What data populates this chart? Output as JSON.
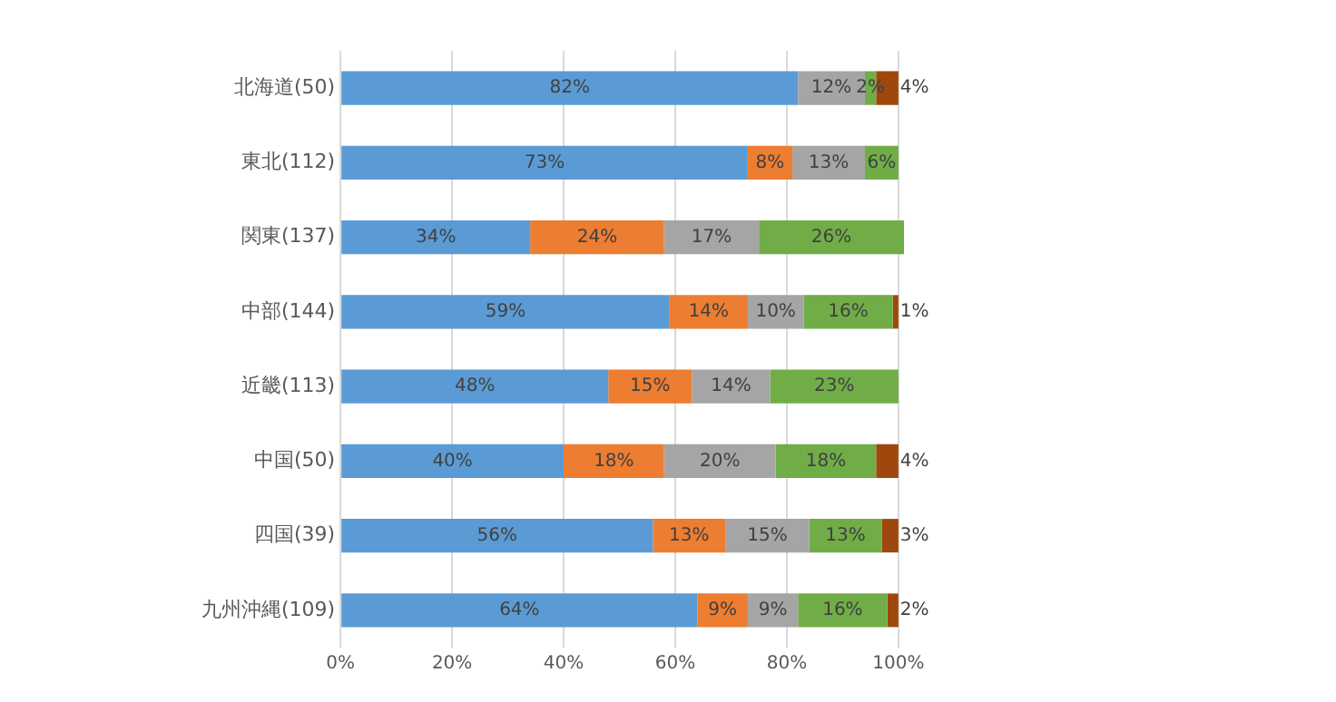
{
  "chart_data": {
    "type": "bar",
    "orientation": "horizontal",
    "stacked": true,
    "categories": [
      "北海道(50)",
      "東北(112)",
      "関東(137)",
      "中部(144)",
      "近畿(113)",
      "中国(50)",
      "四国(39)",
      "九州沖縄(109)"
    ],
    "series": [
      {
        "color": "#5b9bd5",
        "values": [
          82,
          73,
          34,
          59,
          48,
          40,
          56,
          64
        ],
        "value_labels": [
          "82%",
          "73%",
          "34%",
          "59%",
          "48%",
          "40%",
          "56%",
          "64%"
        ]
      },
      {
        "color": "#ed7d31",
        "values": [
          0,
          8,
          24,
          14,
          15,
          18,
          13,
          9
        ],
        "value_labels": [
          null,
          "8%",
          "24%",
          "14%",
          "15%",
          "18%",
          "13%",
          "9%"
        ]
      },
      {
        "color": "#a5a5a5",
        "values": [
          12,
          13,
          17,
          10,
          14,
          20,
          15,
          9
        ],
        "value_labels": [
          "12%",
          "13%",
          "17%",
          "10%",
          "14%",
          "20%",
          "15%",
          "9%"
        ]
      },
      {
        "color": "#70ad47",
        "values": [
          2,
          6,
          26,
          16,
          23,
          18,
          13,
          16
        ],
        "value_labels": [
          "2%",
          "6%",
          "26%",
          "16%",
          "23%",
          "18%",
          "13%",
          "16%"
        ]
      },
      {
        "color": "#9e480e",
        "values": [
          4,
          0,
          0,
          1,
          0,
          4,
          3,
          2
        ],
        "value_labels": [
          "4%",
          null,
          null,
          "1%",
          null,
          "4%",
          "3%",
          "2%"
        ]
      }
    ],
    "xlim": [
      0,
      101
    ],
    "xticks": [
      {
        "value": 0,
        "label": "0%"
      },
      {
        "value": 20,
        "label": "20%"
      },
      {
        "value": 40,
        "label": "40%"
      },
      {
        "value": 60,
        "label": "60%"
      },
      {
        "value": 80,
        "label": "80%"
      },
      {
        "value": 100,
        "label": "100%"
      }
    ],
    "grid": "x",
    "legend": false
  }
}
